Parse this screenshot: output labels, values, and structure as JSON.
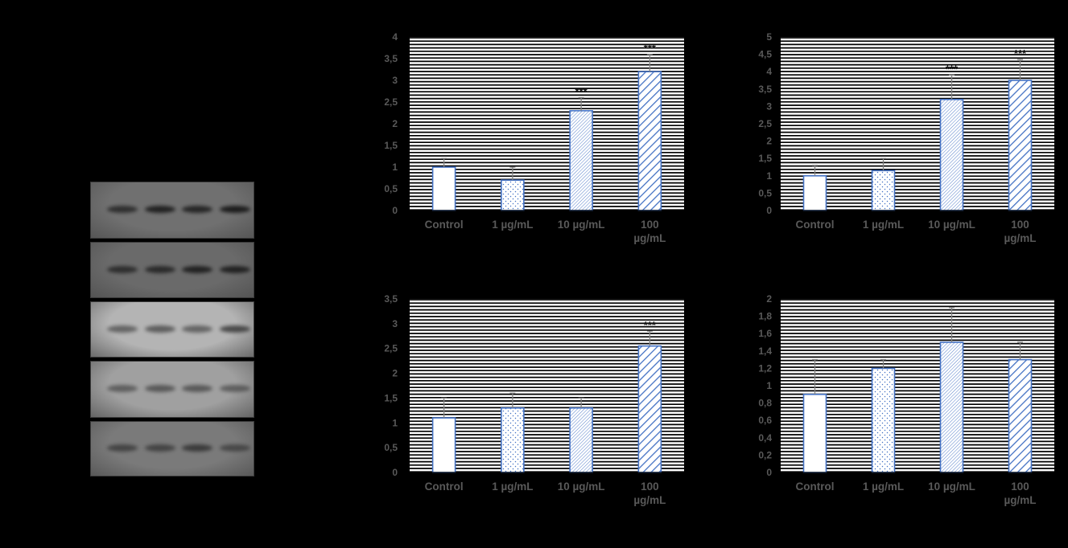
{
  "colors": {
    "background": "#000000",
    "plot_area": "#ffffff",
    "gridline": "#000000",
    "bar_outline": "#4472c4",
    "error_bar": "#808080",
    "axis_text": "#595959"
  },
  "western_blot": {
    "panels": [
      {
        "bg": "#707070",
        "band_color": "#141414",
        "lanes": [
          0.7,
          0.85,
          0.8,
          0.9
        ]
      },
      {
        "bg": "#6a6a6a",
        "band_color": "#1a1a1a",
        "lanes": [
          0.75,
          0.8,
          0.9,
          0.9
        ]
      },
      {
        "bg": "#b4b4b4",
        "band_color": "#303030",
        "lanes": [
          0.6,
          0.65,
          0.6,
          0.8
        ]
      },
      {
        "bg": "#a0a0a0",
        "band_color": "#2a2a2a",
        "lanes": [
          0.55,
          0.6,
          0.6,
          0.55
        ]
      },
      {
        "bg": "#7a7a7a",
        "band_color": "#202020",
        "lanes": [
          0.6,
          0.6,
          0.7,
          0.55
        ]
      }
    ]
  },
  "chart_data": [
    {
      "type": "bar",
      "categories": [
        "Control",
        "1 µg/mL",
        "10 µg/mL",
        "100 µg/mL"
      ],
      "values": [
        1.0,
        0.7,
        2.3,
        3.2
      ],
      "errors": [
        0.2,
        0.3,
        0.3,
        0.4
      ],
      "significance": [
        "",
        "",
        "***",
        "***"
      ],
      "ylim": [
        0,
        4
      ],
      "yticks": [
        "0",
        "0,5",
        "1",
        "1,5",
        "2",
        "2,5",
        "3",
        "3,5",
        "4"
      ],
      "ytick_values": [
        0,
        0.5,
        1,
        1.5,
        2,
        2.5,
        3,
        3.5,
        4
      ],
      "grid": true,
      "title": "",
      "xlabel": "",
      "ylabel": ""
    },
    {
      "type": "bar",
      "categories": [
        "Control",
        "1 µg/mL",
        "10 µg/mL",
        "100 µg/mL"
      ],
      "values": [
        1.0,
        1.15,
        3.2,
        3.75
      ],
      "errors": [
        0.3,
        0.35,
        0.7,
        0.6
      ],
      "significance": [
        "",
        "",
        "***",
        "***"
      ],
      "ylim": [
        0,
        5
      ],
      "yticks": [
        "0",
        "0,5",
        "1",
        "1,5",
        "2",
        "2,5",
        "3",
        "3,5",
        "4",
        "4,5",
        "5"
      ],
      "ytick_values": [
        0,
        0.5,
        1,
        1.5,
        2,
        2.5,
        3,
        3.5,
        4,
        4.5,
        5
      ],
      "grid": true,
      "title": "",
      "xlabel": "",
      "ylabel": ""
    },
    {
      "type": "bar",
      "categories": [
        "Control",
        "1 µg/mL",
        "10 µg/mL",
        "100 µg/mL"
      ],
      "values": [
        1.1,
        1.3,
        1.3,
        2.55
      ],
      "errors": [
        0.4,
        0.3,
        0.2,
        0.3
      ],
      "significance": [
        "",
        "",
        "",
        "***"
      ],
      "ylim": [
        0,
        3.5
      ],
      "yticks": [
        "0",
        "0,5",
        "1",
        "1,5",
        "2",
        "2,5",
        "3",
        "3,5"
      ],
      "ytick_values": [
        0,
        0.5,
        1,
        1.5,
        2,
        2.5,
        3,
        3.5
      ],
      "grid": true,
      "title": "",
      "xlabel": "",
      "ylabel": ""
    },
    {
      "type": "bar",
      "categories": [
        "Control",
        "1 µg/mL",
        "10 µg/mL",
        "100 µg/mL"
      ],
      "values": [
        0.9,
        1.2,
        1.5,
        1.3
      ],
      "errors": [
        0.4,
        0.1,
        0.4,
        0.2
      ],
      "significance": [
        "",
        "",
        "",
        ""
      ],
      "ylim": [
        0,
        2
      ],
      "yticks": [
        "0",
        "0,2",
        "0,4",
        "0,6",
        "0,8",
        "1",
        "1,2",
        "1,4",
        "1,6",
        "1,8",
        "2"
      ],
      "ytick_values": [
        0,
        0.2,
        0.4,
        0.6,
        0.8,
        1,
        1.2,
        1.4,
        1.6,
        1.8,
        2
      ],
      "grid": true,
      "title": "",
      "xlabel": "",
      "ylabel": ""
    }
  ]
}
